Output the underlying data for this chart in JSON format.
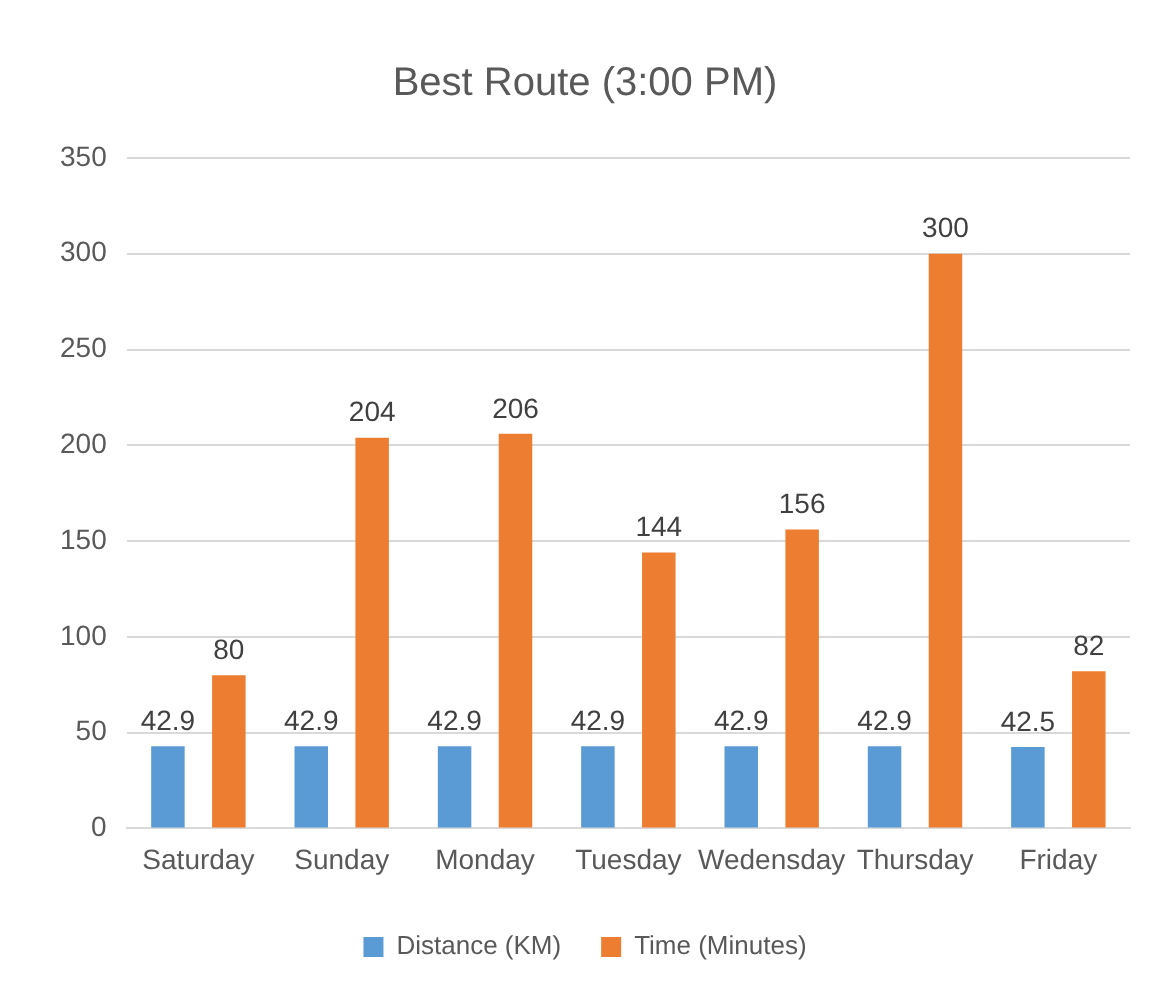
{
  "chart_data": {
    "type": "bar",
    "title": "Best Route (3:00 PM)",
    "categories": [
      "Saturday",
      "Sunday",
      "Monday",
      "Tuesday",
      "Wedensday",
      "Thursday",
      "Friday"
    ],
    "series": [
      {
        "name": "Distance (KM)",
        "color": "#5b9bd5",
        "values": [
          42.9,
          42.9,
          42.9,
          42.9,
          42.9,
          42.9,
          42.5
        ]
      },
      {
        "name": "Time (Minutes)",
        "color": "#ed7d31",
        "values": [
          80,
          204,
          206,
          144,
          156,
          300,
          82
        ]
      }
    ],
    "ylim": [
      0,
      350
    ],
    "yticks": [
      0,
      50,
      100,
      150,
      200,
      250,
      300,
      350
    ],
    "grid": "y",
    "legend": "bottom",
    "data_labels": true
  }
}
